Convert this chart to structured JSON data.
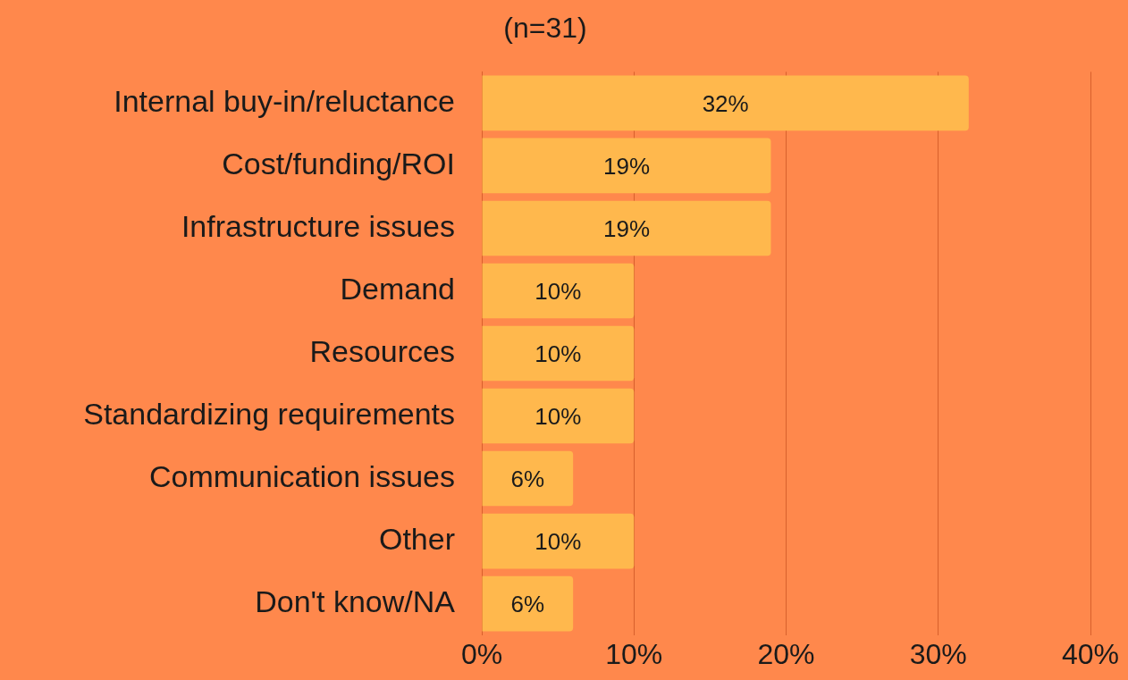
{
  "chart_data": {
    "type": "bar",
    "orientation": "horizontal",
    "title": "(n=31)",
    "categories": [
      "Internal buy-in/reluctance",
      "Cost/funding/ROI",
      "Infrastructure issues",
      "Demand",
      "Resources",
      "Standardizing requirements",
      "Communication issues",
      "Other",
      "Don't know/NA"
    ],
    "values": [
      32,
      19,
      19,
      10,
      10,
      10,
      6,
      10,
      6
    ],
    "color": "#ffb84d",
    "value_labels": [
      "32%",
      "19%",
      "19%",
      "10%",
      "10%",
      "10%",
      "6%",
      "10%",
      "6%"
    ],
    "xlim": [
      0,
      40
    ],
    "xticks": [
      {
        "value": 0,
        "label": "0%"
      },
      {
        "value": 10,
        "label": "10%"
      },
      {
        "value": 20,
        "label": "20%"
      },
      {
        "value": 30,
        "label": "30%"
      },
      {
        "value": 40,
        "label": "40%"
      }
    ],
    "grid": "x",
    "legend": false
  }
}
